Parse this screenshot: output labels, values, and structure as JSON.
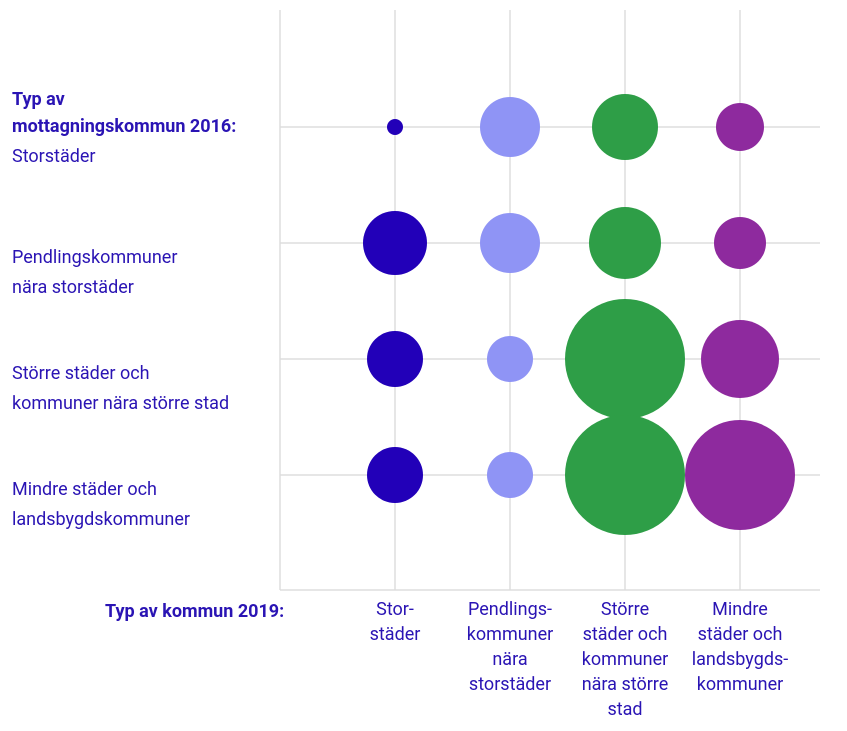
{
  "chart_data": {
    "type": "bubble",
    "y_title": "Typ av\nmottagningskommun 2016:",
    "x_title": "Typ av kommun 2019:",
    "rows": [
      "Storstäder",
      "Pendlingskommuner\nnära storstäder",
      "Större städer och\nkommuner nära större stad",
      "Mindre städer och\nlandsbygdskommuner"
    ],
    "series": [
      {
        "name": "Stor-\nstäder",
        "color": "#2200b8",
        "values": [
          64,
          1024,
          784,
          784
        ]
      },
      {
        "name": "Pendlings-\nkommuner\nnära\nstorstäder",
        "color": "#8f94f5",
        "values": [
          900,
          900,
          529,
          529
        ]
      },
      {
        "name": "Större\nstäder och\nkommuner\nnära större\nstad",
        "color": "#2e9e47",
        "values": [
          1089,
          1296,
          3600,
          3600
        ]
      },
      {
        "name": "Mindre\nstäder och\nlandsbygds-\nkommuner",
        "color": "#8e2a9e",
        "values": [
          576,
          676,
          1521,
          3025
        ]
      }
    ],
    "grid": true
  }
}
